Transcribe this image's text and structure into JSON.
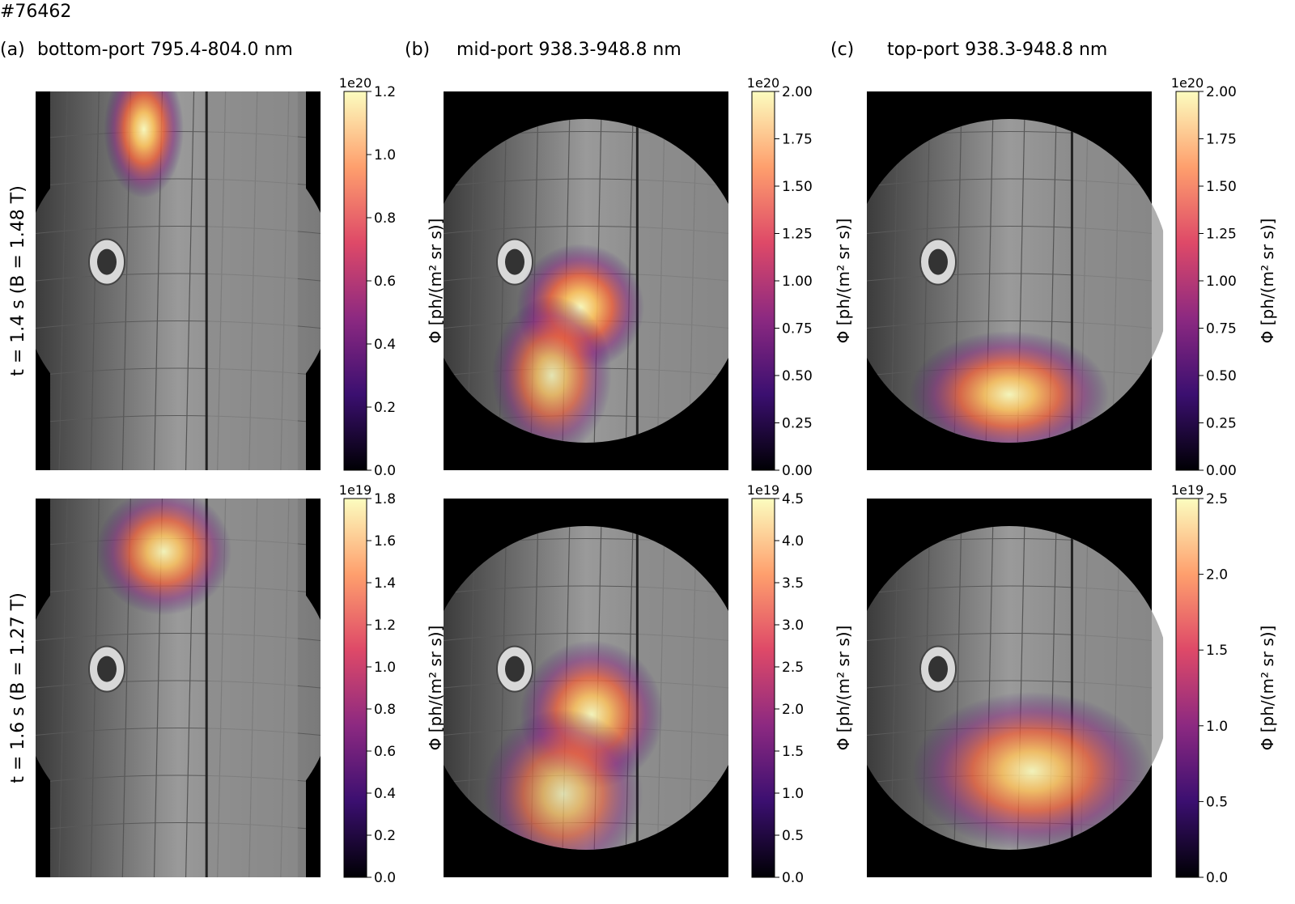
{
  "shot": "#76462",
  "columns": [
    {
      "label": "(a)",
      "title": "bottom-port 795.4-804.0 nm"
    },
    {
      "label": "(b)",
      "title": "mid-port 938.3-948.8 nm"
    },
    {
      "label": "(c)",
      "title": "top-port 938.3-948.8 nm"
    }
  ],
  "rows": [
    {
      "time_label": "t = 1.4 s (B = 1.48 T)"
    },
    {
      "time_label": "t = 1.6 s (B = 1.27 T)"
    }
  ],
  "colorbar_label": "Φ [ph/(m² sr s)]",
  "colormap": [
    "#000004",
    "#3b0f70",
    "#8c2981",
    "#de4968",
    "#fe9f6d",
    "#fcfdbf"
  ],
  "colormap_note": "inferno-like (black-purple-red-orange-yellow-white)",
  "chart_data": [
    {
      "type": "heatmap",
      "panel": "a-top",
      "title": "bottom-port 795.4-804.0 nm",
      "colorbar": {
        "ticks": [
          "0.0",
          "0.2",
          "0.4",
          "0.6",
          "0.8",
          "1.0",
          "1.2"
        ],
        "values": [
          0,
          0.2,
          0.4,
          0.6,
          0.8,
          1.0,
          1.2
        ],
        "range": [
          0,
          1.2
        ],
        "multiplier": "1e20",
        "label": "Φ [ph/(m² sr s)]"
      },
      "emission": [
        {
          "cx": 0.38,
          "cy": 0.1,
          "rx": 0.1,
          "ry": 0.13,
          "peak": 1.0
        }
      ]
    },
    {
      "type": "heatmap",
      "panel": "b-top",
      "title": "mid-port 938.3-948.8 nm",
      "colorbar": {
        "ticks": [
          "0.00",
          "0.25",
          "0.50",
          "0.75",
          "1.00",
          "1.25",
          "1.50",
          "1.75",
          "2.00"
        ],
        "values": [
          0,
          0.25,
          0.5,
          0.75,
          1.0,
          1.25,
          1.5,
          1.75,
          2.0
        ],
        "range": [
          0,
          2.0
        ],
        "multiplier": "1e20",
        "label": "Φ [ph/(m² sr s)]"
      },
      "emission": [
        {
          "cx": 0.48,
          "cy": 0.57,
          "rx": 0.16,
          "ry": 0.12,
          "peak": 1.0
        },
        {
          "cx": 0.38,
          "cy": 0.75,
          "rx": 0.15,
          "ry": 0.15,
          "peak": 0.6
        }
      ]
    },
    {
      "type": "heatmap",
      "panel": "c-top",
      "title": "top-port 938.3-948.8 nm",
      "colorbar": {
        "ticks": [
          "0.00",
          "0.25",
          "0.50",
          "0.75",
          "1.00",
          "1.25",
          "1.50",
          "1.75",
          "2.00"
        ],
        "values": [
          0,
          0.25,
          0.5,
          0.75,
          1.0,
          1.25,
          1.5,
          1.75,
          2.0
        ],
        "range": [
          0,
          2.0
        ],
        "multiplier": "1e20",
        "label": "Φ [ph/(m² sr s)]"
      },
      "emission": [
        {
          "cx": 0.5,
          "cy": 0.8,
          "rx": 0.25,
          "ry": 0.12,
          "peak": 0.9
        }
      ]
    },
    {
      "type": "heatmap",
      "panel": "a-bottom",
      "title": "bottom-port 795.4-804.0 nm",
      "colorbar": {
        "ticks": [
          "0.0",
          "0.2",
          "0.4",
          "0.6",
          "0.8",
          "1.0",
          "1.2",
          "1.4",
          "1.6",
          "1.8"
        ],
        "values": [
          0,
          0.2,
          0.4,
          0.6,
          0.8,
          1.0,
          1.2,
          1.4,
          1.6,
          1.8
        ],
        "range": [
          0,
          1.8
        ],
        "multiplier": "1e19",
        "label": "Φ [ph/(m² sr s)]"
      },
      "emission": [
        {
          "cx": 0.45,
          "cy": 0.14,
          "rx": 0.17,
          "ry": 0.12,
          "peak": 0.85
        }
      ]
    },
    {
      "type": "heatmap",
      "panel": "b-bottom",
      "title": "mid-port 938.3-948.8 nm",
      "colorbar": {
        "ticks": [
          "0.0",
          "0.5",
          "1.0",
          "1.5",
          "2.0",
          "2.5",
          "3.0",
          "3.5",
          "4.0",
          "4.5"
        ],
        "values": [
          0,
          0.5,
          1.0,
          1.5,
          2.0,
          2.5,
          3.0,
          3.5,
          4.0,
          4.5
        ],
        "range": [
          0,
          4.5
        ],
        "multiplier": "1e19",
        "label": "Φ [ph/(m² sr s)]"
      },
      "emission": [
        {
          "cx": 0.52,
          "cy": 0.57,
          "rx": 0.18,
          "ry": 0.14,
          "peak": 0.85
        },
        {
          "cx": 0.42,
          "cy": 0.78,
          "rx": 0.2,
          "ry": 0.16,
          "peak": 0.45
        }
      ]
    },
    {
      "type": "heatmap",
      "panel": "c-bottom",
      "title": "top-port 938.3-948.8 nm",
      "colorbar": {
        "ticks": [
          "0.0",
          "0.5",
          "1.0",
          "1.5",
          "2.0",
          "2.5"
        ],
        "values": [
          0,
          0.5,
          1.0,
          1.5,
          2.0,
          2.5
        ],
        "range": [
          0,
          2.5
        ],
        "multiplier": "1e19",
        "label": "Φ [ph/(m² sr s)]"
      },
      "emission": [
        {
          "cx": 0.58,
          "cy": 0.72,
          "rx": 0.3,
          "ry": 0.15,
          "peak": 0.85
        }
      ]
    }
  ]
}
